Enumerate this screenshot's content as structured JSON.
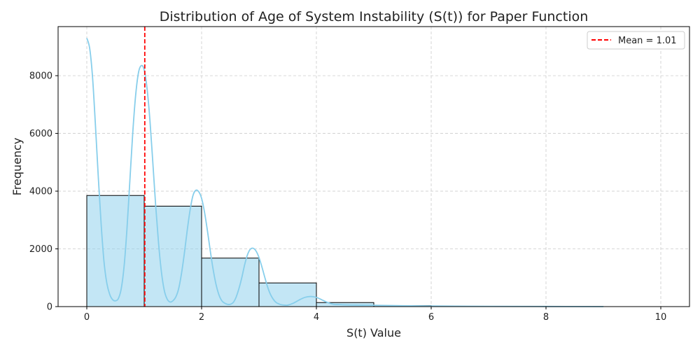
{
  "chart_data": {
    "type": "bar",
    "title": "Distribution of Age of System Instability (S(t)) for Paper Function",
    "xlabel": "S(t) Value",
    "ylabel": "Frequency",
    "xlim": [
      -0.5,
      10.5
    ],
    "ylim": [
      0,
      9700
    ],
    "xticks": [
      0,
      2,
      4,
      6,
      8,
      10
    ],
    "yticks": [
      0,
      2000,
      4000,
      6000,
      8000
    ],
    "grid": true,
    "bins": [
      {
        "x0": 0,
        "x1": 1,
        "count": 3850
      },
      {
        "x0": 1,
        "x1": 2,
        "count": 3480
      },
      {
        "x0": 2,
        "x1": 3,
        "count": 1680
      },
      {
        "x0": 3,
        "x1": 4,
        "count": 820
      },
      {
        "x0": 4,
        "x1": 5,
        "count": 140
      },
      {
        "x0": 5,
        "x1": 6,
        "count": 35
      },
      {
        "x0": 6,
        "x1": 7,
        "count": 8
      },
      {
        "x0": 7,
        "x1": 8,
        "count": 2
      },
      {
        "x0": 8,
        "x1": 9,
        "count": 1
      },
      {
        "x0": 9,
        "x1": 10,
        "count": 0
      }
    ],
    "kde": {
      "x": [
        0,
        0.05,
        0.1,
        0.15,
        0.2,
        0.25,
        0.3,
        0.35,
        0.4,
        0.45,
        0.5,
        0.55,
        0.6,
        0.65,
        0.7,
        0.75,
        0.8,
        0.85,
        0.9,
        0.95,
        1.0,
        1.05,
        1.1,
        1.15,
        1.2,
        1.25,
        1.3,
        1.35,
        1.4,
        1.45,
        1.5,
        1.55,
        1.6,
        1.65,
        1.7,
        1.75,
        1.8,
        1.85,
        1.9,
        1.95,
        2.0,
        2.05,
        2.1,
        2.15,
        2.2,
        2.25,
        2.3,
        2.35,
        2.4,
        2.45,
        2.5,
        2.55,
        2.6,
        2.65,
        2.7,
        2.75,
        2.8,
        2.85,
        2.9,
        2.95,
        3.0,
        3.05,
        3.1,
        3.15,
        3.2,
        3.25,
        3.3,
        3.35,
        3.4,
        3.45,
        3.5,
        3.6,
        3.7,
        3.8,
        3.9,
        4.0,
        4.1,
        4.2,
        4.3,
        4.4,
        4.5,
        4.6,
        4.8,
        5.0,
        5.5,
        6.0,
        7.0,
        8.0,
        9.0
      ],
      "y": [
        9300,
        8950,
        7950,
        6300,
        4500,
        2850,
        1550,
        800,
        420,
        240,
        200,
        280,
        620,
        1400,
        2700,
        4350,
        6000,
        7300,
        8100,
        8350,
        8200,
        7550,
        6450,
        5000,
        3500,
        2200,
        1200,
        560,
        260,
        160,
        200,
        330,
        620,
        1150,
        1850,
        2650,
        3350,
        3850,
        4030,
        3980,
        3750,
        3280,
        2650,
        1950,
        1300,
        780,
        420,
        210,
        120,
        80,
        80,
        140,
        320,
        620,
        1000,
        1450,
        1800,
        1990,
        2020,
        1920,
        1700,
        1380,
        1020,
        680,
        420,
        250,
        140,
        90,
        60,
        50,
        50,
        120,
        230,
        320,
        350,
        320,
        230,
        140,
        80,
        70,
        60,
        55,
        50,
        45,
        30,
        20,
        10,
        5,
        0
      ]
    },
    "mean": 1.01,
    "legend": {
      "label": "Mean = 1.01",
      "position": "top-right"
    },
    "colors": {
      "bar_fill": "#87ceeb",
      "bar_stroke": "#000000",
      "kde_line": "#87ceeb",
      "mean_line": "#ff0000",
      "grid": "#cccccc"
    }
  }
}
